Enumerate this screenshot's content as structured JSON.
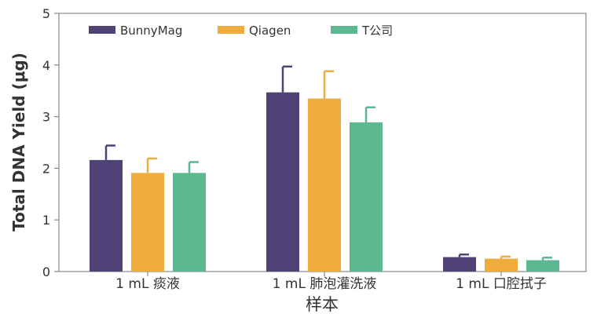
{
  "chart_data": {
    "type": "bar",
    "title": "",
    "xlabel": "样本",
    "ylabel": "Total DNA Yield (μg)",
    "ylim": [
      0,
      5
    ],
    "yticks": [
      0,
      1,
      2,
      3,
      4,
      5
    ],
    "grid": false,
    "legend_position": "top-left",
    "categories": [
      "1 mL 痰液",
      "1 mL 肺泡灌洗液",
      "1 mL 口腔拭子"
    ],
    "series": [
      {
        "name": "BunnyMag",
        "color": "#4f4277",
        "values": [
          2.16,
          3.47,
          0.28
        ],
        "errors": [
          0.28,
          0.5,
          0.05
        ]
      },
      {
        "name": "Qiagen",
        "color": "#efab3c",
        "values": [
          1.91,
          3.35,
          0.25
        ],
        "errors": [
          0.28,
          0.53,
          0.04
        ]
      },
      {
        "name": "T公司",
        "color": "#5bb890",
        "values": [
          1.91,
          2.89,
          0.22
        ],
        "errors": [
          0.21,
          0.29,
          0.05
        ]
      }
    ]
  }
}
